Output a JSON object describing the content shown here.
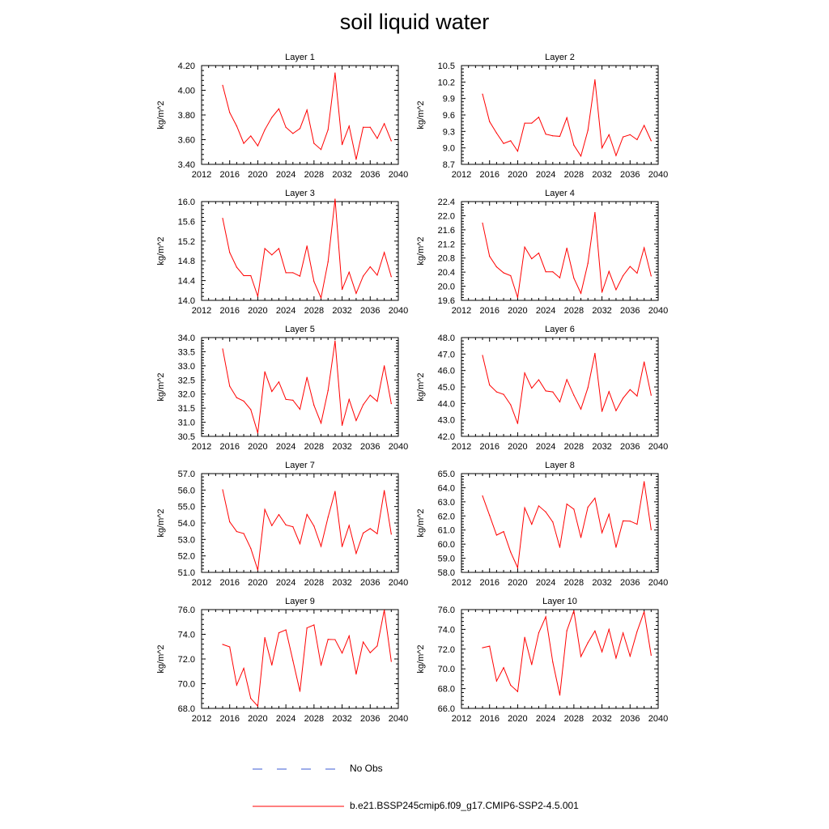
{
  "title": "soil liquid water",
  "legend": [
    {
      "label": "No Obs",
      "color": "#3b5bd6",
      "dash": true
    },
    {
      "label": "b.e21.BSSP245cmip6.f09_g17.CMIP6-SSP2-4.5.001",
      "color": "#ff0000",
      "dash": false
    }
  ],
  "chart_data": [
    {
      "type": "line",
      "title": "Layer 1",
      "ylabel": "kg/m^2",
      "xlim": [
        2012,
        2040
      ],
      "ylim": [
        3.4,
        4.2
      ],
      "x_ticks": [
        "2012",
        "2016",
        "2020",
        "2024",
        "2028",
        "2032",
        "2036",
        "2040"
      ],
      "y_ticks": [
        "3.40",
        "3.60",
        "3.80",
        "4.00",
        "4.20"
      ],
      "x": [
        2015,
        2016,
        2017,
        2018,
        2019,
        2020,
        2021,
        2022,
        2023,
        2024,
        2025,
        2026,
        2027,
        2028,
        2029,
        2030,
        2031,
        2032,
        2033,
        2034,
        2035,
        2036,
        2037,
        2038,
        2039
      ],
      "series": [
        {
          "color": "#ff0000",
          "values": [
            4.04,
            3.82,
            3.71,
            3.57,
            3.63,
            3.55,
            3.68,
            3.78,
            3.85,
            3.7,
            3.65,
            3.69,
            3.84,
            3.57,
            3.52,
            3.68,
            4.14,
            3.56,
            3.71,
            3.44,
            3.7,
            3.7,
            3.61,
            3.73,
            3.59
          ]
        }
      ]
    },
    {
      "type": "line",
      "title": "Layer 2",
      "ylabel": "kg/m^2",
      "xlim": [
        2012,
        2040
      ],
      "ylim": [
        8.7,
        10.5
      ],
      "x_ticks": [
        "2012",
        "2016",
        "2020",
        "2024",
        "2028",
        "2032",
        "2036",
        "2040"
      ],
      "y_ticks": [
        "8.7",
        "9.0",
        "9.3",
        "9.6",
        "9.9",
        "10.2",
        "10.5"
      ],
      "x": [
        2015,
        2016,
        2017,
        2018,
        2019,
        2020,
        2021,
        2022,
        2023,
        2024,
        2025,
        2026,
        2027,
        2028,
        2029,
        2030,
        2031,
        2032,
        2033,
        2034,
        2035,
        2036,
        2037,
        2038,
        2039
      ],
      "series": [
        {
          "color": "#ff0000",
          "values": [
            9.98,
            9.48,
            9.27,
            9.08,
            9.13,
            8.94,
            9.45,
            9.45,
            9.56,
            9.25,
            9.22,
            9.21,
            9.55,
            9.05,
            8.85,
            9.32,
            10.24,
            9.0,
            9.24,
            8.86,
            9.2,
            9.24,
            9.15,
            9.41,
            9.13
          ]
        }
      ]
    },
    {
      "type": "line",
      "title": "Layer 3",
      "ylabel": "kg/m^2",
      "xlim": [
        2012,
        2040
      ],
      "ylim": [
        14.0,
        16.0
      ],
      "x_ticks": [
        "2012",
        "2016",
        "2020",
        "2024",
        "2028",
        "2032",
        "2036",
        "2040"
      ],
      "y_ticks": [
        "14.0",
        "14.4",
        "14.8",
        "15.2",
        "15.6",
        "16.0"
      ],
      "x": [
        2015,
        2016,
        2017,
        2018,
        2019,
        2020,
        2021,
        2022,
        2023,
        2024,
        2025,
        2026,
        2027,
        2028,
        2029,
        2030,
        2031,
        2032,
        2033,
        2034,
        2035,
        2036,
        2037,
        2038,
        2039
      ],
      "series": [
        {
          "color": "#ff0000",
          "values": [
            15.66,
            14.97,
            14.67,
            14.5,
            14.5,
            14.08,
            15.05,
            14.92,
            15.05,
            14.56,
            14.56,
            14.49,
            15.1,
            14.38,
            14.05,
            14.78,
            16.05,
            14.22,
            14.57,
            14.14,
            14.49,
            14.68,
            14.51,
            14.97,
            14.48
          ]
        }
      ]
    },
    {
      "type": "line",
      "title": "Layer 4",
      "ylabel": "kg/m^2",
      "xlim": [
        2012,
        2040
      ],
      "ylim": [
        19.6,
        22.4
      ],
      "x_ticks": [
        "2012",
        "2016",
        "2020",
        "2024",
        "2028",
        "2032",
        "2036",
        "2040"
      ],
      "y_ticks": [
        "19.6",
        "20.0",
        "20.4",
        "20.8",
        "21.2",
        "21.6",
        "22.0",
        "22.4"
      ],
      "x": [
        2015,
        2016,
        2017,
        2018,
        2019,
        2020,
        2021,
        2022,
        2023,
        2024,
        2025,
        2026,
        2027,
        2028,
        2029,
        2030,
        2031,
        2032,
        2033,
        2034,
        2035,
        2036,
        2037,
        2038,
        2039
      ],
      "series": [
        {
          "color": "#ff0000",
          "values": [
            21.79,
            20.85,
            20.55,
            20.38,
            20.3,
            19.68,
            21.11,
            20.78,
            20.94,
            20.41,
            20.41,
            20.24,
            21.08,
            20.23,
            19.8,
            20.65,
            22.09,
            19.83,
            20.42,
            19.9,
            20.3,
            20.56,
            20.37,
            21.09,
            20.29
          ]
        }
      ]
    },
    {
      "type": "line",
      "title": "Layer 5",
      "ylabel": "kg/m^2",
      "xlim": [
        2012,
        2040
      ],
      "ylim": [
        30.5,
        34.0
      ],
      "x_ticks": [
        "2012",
        "2016",
        "2020",
        "2024",
        "2028",
        "2032",
        "2036",
        "2040"
      ],
      "y_ticks": [
        "30.5",
        "31.0",
        "31.5",
        "32.0",
        "32.5",
        "33.0",
        "33.5",
        "34.0"
      ],
      "x": [
        2015,
        2016,
        2017,
        2018,
        2019,
        2020,
        2021,
        2022,
        2023,
        2024,
        2025,
        2026,
        2027,
        2028,
        2029,
        2030,
        2031,
        2032,
        2033,
        2034,
        2035,
        2036,
        2037,
        2038,
        2039
      ],
      "series": [
        {
          "color": "#ff0000",
          "values": [
            33.6,
            32.28,
            31.87,
            31.75,
            31.45,
            30.62,
            32.79,
            32.09,
            32.43,
            31.81,
            31.78,
            31.46,
            32.59,
            31.6,
            30.97,
            32.12,
            33.88,
            30.89,
            31.81,
            31.06,
            31.62,
            31.96,
            31.74,
            33.0,
            31.66
          ]
        }
      ]
    },
    {
      "type": "line",
      "title": "Layer 6",
      "ylabel": "kg/m^2",
      "xlim": [
        2012,
        2040
      ],
      "ylim": [
        42.0,
        48.0
      ],
      "x_ticks": [
        "2012",
        "2016",
        "2020",
        "2024",
        "2028",
        "2032",
        "2036",
        "2040"
      ],
      "y_ticks": [
        "42.0",
        "43.0",
        "44.0",
        "45.0",
        "46.0",
        "47.0",
        "48.0"
      ],
      "x": [
        2015,
        2016,
        2017,
        2018,
        2019,
        2020,
        2021,
        2022,
        2023,
        2024,
        2025,
        2026,
        2027,
        2028,
        2029,
        2030,
        2031,
        2032,
        2033,
        2034,
        2035,
        2036,
        2037,
        2038,
        2039
      ],
      "series": [
        {
          "color": "#ff0000",
          "values": [
            46.92,
            45.12,
            44.7,
            44.55,
            43.92,
            42.78,
            45.85,
            44.93,
            45.44,
            44.76,
            44.7,
            44.09,
            45.45,
            44.5,
            43.65,
            44.96,
            47.04,
            43.52,
            44.72,
            43.56,
            44.32,
            44.84,
            44.45,
            46.52,
            44.5
          ]
        }
      ]
    },
    {
      "type": "line",
      "title": "Layer 7",
      "ylabel": "kg/m^2",
      "xlim": [
        2012,
        2040
      ],
      "ylim": [
        51.0,
        57.0
      ],
      "x_ticks": [
        "2012",
        "2016",
        "2020",
        "2024",
        "2028",
        "2032",
        "2036",
        "2040"
      ],
      "y_ticks": [
        "51.0",
        "52.0",
        "53.0",
        "54.0",
        "55.0",
        "56.0",
        "57.0"
      ],
      "x": [
        2015,
        2016,
        2017,
        2018,
        2019,
        2020,
        2021,
        2022,
        2023,
        2024,
        2025,
        2026,
        2027,
        2028,
        2029,
        2030,
        2031,
        2032,
        2033,
        2034,
        2035,
        2036,
        2037,
        2038,
        2039
      ],
      "series": [
        {
          "color": "#ff0000",
          "values": [
            56.02,
            54.07,
            53.48,
            53.36,
            52.46,
            51.14,
            54.82,
            53.84,
            54.51,
            53.88,
            53.77,
            52.74,
            54.52,
            53.81,
            52.58,
            54.35,
            55.92,
            52.56,
            53.85,
            52.15,
            53.39,
            53.66,
            53.35,
            55.97,
            53.32
          ]
        }
      ]
    },
    {
      "type": "line",
      "title": "Layer 8",
      "ylabel": "kg/m^2",
      "xlim": [
        2012,
        2040
      ],
      "ylim": [
        58.0,
        65.0
      ],
      "x_ticks": [
        "2012",
        "2016",
        "2020",
        "2024",
        "2028",
        "2032",
        "2036",
        "2040"
      ],
      "y_ticks": [
        "58.0",
        "59.0",
        "60.0",
        "61.0",
        "62.0",
        "63.0",
        "64.0",
        "65.0"
      ],
      "x": [
        2015,
        2016,
        2017,
        2018,
        2019,
        2020,
        2021,
        2022,
        2023,
        2024,
        2025,
        2026,
        2027,
        2028,
        2029,
        2030,
        2031,
        2032,
        2033,
        2034,
        2035,
        2036,
        2037,
        2038,
        2039
      ],
      "series": [
        {
          "color": "#ff0000",
          "values": [
            63.42,
            62.04,
            60.64,
            60.89,
            59.44,
            58.33,
            62.57,
            61.41,
            62.71,
            62.28,
            61.57,
            59.77,
            62.84,
            62.48,
            60.47,
            62.62,
            63.26,
            60.81,
            62.12,
            59.78,
            61.65,
            61.63,
            61.41,
            64.43,
            61.03
          ]
        }
      ]
    },
    {
      "type": "line",
      "title": "Layer 9",
      "ylabel": "kg/m^2",
      "xlim": [
        2012,
        2040
      ],
      "ylim": [
        68.0,
        76.0
      ],
      "x_ticks": [
        "2012",
        "2016",
        "2020",
        "2024",
        "2028",
        "2032",
        "2036",
        "2040"
      ],
      "y_ticks": [
        "68.0",
        "70.0",
        "72.0",
        "74.0",
        "76.0"
      ],
      "x": [
        2015,
        2016,
        2017,
        2018,
        2019,
        2020,
        2021,
        2022,
        2023,
        2024,
        2025,
        2026,
        2027,
        2028,
        2029,
        2030,
        2031,
        2032,
        2033,
        2034,
        2035,
        2036,
        2037,
        2038,
        2039
      ],
      "series": [
        {
          "color": "#ff0000",
          "values": [
            73.18,
            72.98,
            69.89,
            71.25,
            68.81,
            68.18,
            73.73,
            71.51,
            74.12,
            74.36,
            71.87,
            69.38,
            74.52,
            74.76,
            71.48,
            73.59,
            73.57,
            72.48,
            73.87,
            70.78,
            73.38,
            72.51,
            73.06,
            75.96,
            71.8
          ]
        }
      ]
    },
    {
      "type": "line",
      "title": "Layer 10",
      "ylabel": "kg/m^2",
      "xlim": [
        2012,
        2040
      ],
      "ylim": [
        66.0,
        76.0
      ],
      "x_ticks": [
        "2012",
        "2016",
        "2020",
        "2024",
        "2028",
        "2032",
        "2036",
        "2040"
      ],
      "y_ticks": [
        "66.0",
        "68.0",
        "70.0",
        "72.0",
        "74.0",
        "76.0"
      ],
      "x": [
        2015,
        2016,
        2017,
        2018,
        2019,
        2020,
        2021,
        2022,
        2023,
        2024,
        2025,
        2026,
        2027,
        2028,
        2029,
        2030,
        2031,
        2032,
        2033,
        2034,
        2035,
        2036,
        2037,
        2038,
        2039
      ],
      "series": [
        {
          "color": "#ff0000",
          "values": [
            72.14,
            72.3,
            68.77,
            70.12,
            68.35,
            67.7,
            73.19,
            70.43,
            73.65,
            75.27,
            70.68,
            67.34,
            73.86,
            75.88,
            71.25,
            72.65,
            73.84,
            71.73,
            74.0,
            71.09,
            73.64,
            71.29,
            73.79,
            75.79,
            71.38
          ]
        }
      ]
    }
  ]
}
